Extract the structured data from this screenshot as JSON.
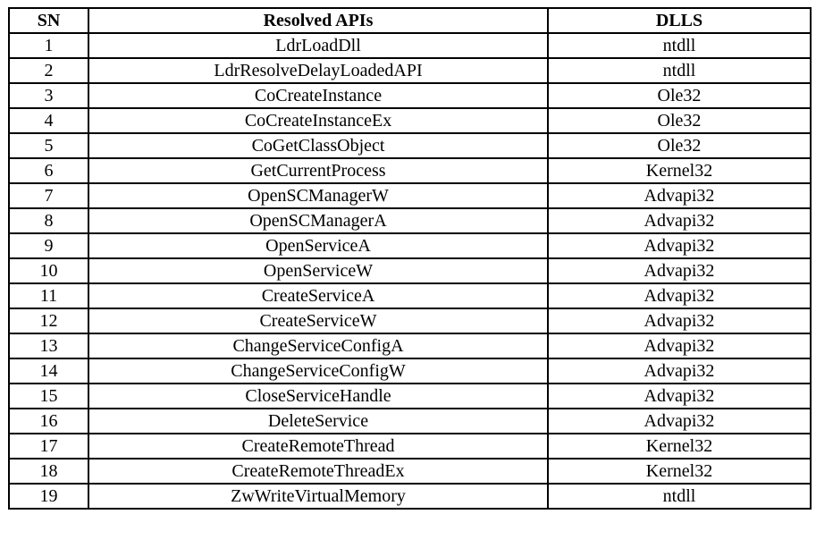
{
  "headers": [
    "SN",
    "Resolved APIs",
    "DLLS"
  ],
  "rows": [
    [
      "1",
      "LdrLoadDll",
      "ntdll"
    ],
    [
      "2",
      "LdrResolveDelayLoadedAPI",
      "ntdll"
    ],
    [
      "3",
      "CoCreateInstance",
      "Ole32"
    ],
    [
      "4",
      "CoCreateInstanceEx",
      "Ole32"
    ],
    [
      "5",
      "CoGetClassObject",
      "Ole32"
    ],
    [
      "6",
      "GetCurrentProcess",
      "Kernel32"
    ],
    [
      "7",
      "OpenSCManagerW",
      "Advapi32"
    ],
    [
      "8",
      "OpenSCManagerA",
      "Advapi32"
    ],
    [
      "9",
      "OpenServiceA",
      "Advapi32"
    ],
    [
      "10",
      "OpenServiceW",
      "Advapi32"
    ],
    [
      "11",
      "CreateServiceA",
      "Advapi32"
    ],
    [
      "12",
      "CreateServiceW",
      "Advapi32"
    ],
    [
      "13",
      "ChangeServiceConfigA",
      "Advapi32"
    ],
    [
      "14",
      "ChangeServiceConfigW",
      "Advapi32"
    ],
    [
      "15",
      "CloseServiceHandle",
      "Advapi32"
    ],
    [
      "16",
      "DeleteService",
      "Advapi32"
    ],
    [
      "17",
      "CreateRemoteThread",
      "Kernel32"
    ],
    [
      "18",
      "CreateRemoteThreadEx",
      "Kernel32"
    ],
    [
      "19",
      "ZwWriteVirtualMemory",
      "ntdll"
    ]
  ]
}
